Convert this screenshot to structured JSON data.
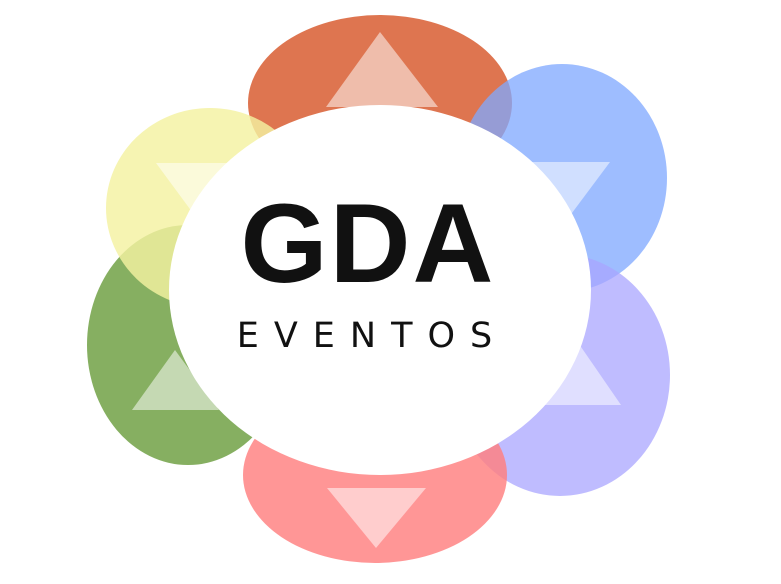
{
  "logo": {
    "title": "GDA",
    "subtitle": "EVENTOS",
    "petal_colors": {
      "top": "#d85e33",
      "upper_right": "#7fa8ff",
      "lower_right": "#a9a5ff",
      "bottom": "#ff7f7f",
      "lower_left": "#79a650",
      "upper_left": "#f4f1a1"
    },
    "center_fill": "#ffffff",
    "text_color": "#111111"
  }
}
